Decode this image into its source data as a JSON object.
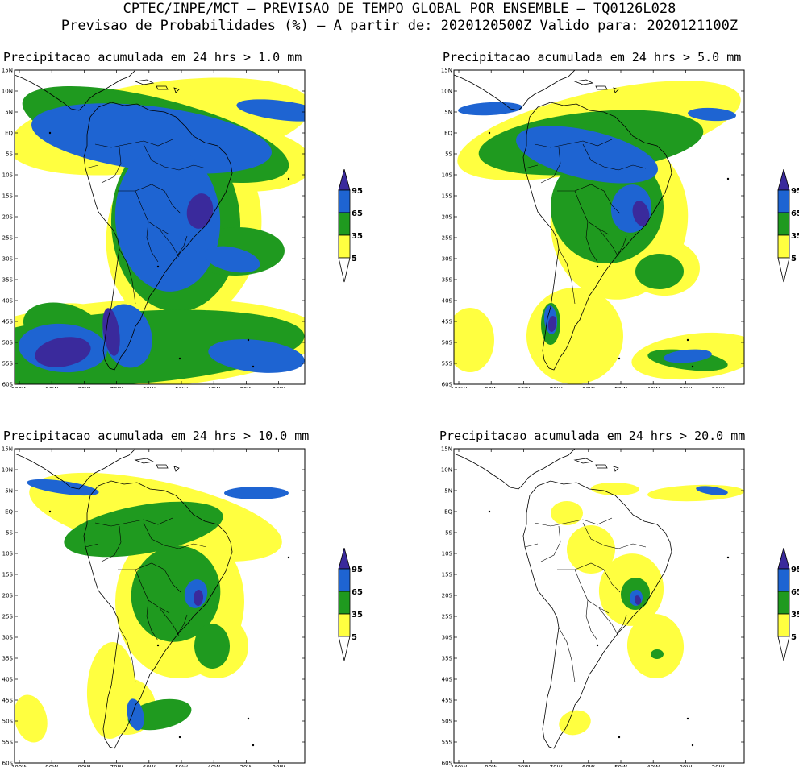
{
  "header": {
    "line1": "CPTEC/INPE/MCT — PREVISAO DE TEMPO GLOBAL POR ENSEMBLE — TQ0126L028",
    "line2": "Previsao de Probabilidades (%) —  A partir de: 2020120500Z  Valido para: 2020121100Z"
  },
  "axes": {
    "lat_labels": [
      "15N",
      "10N",
      "5N",
      "EQ",
      "5S",
      "10S",
      "15S",
      "20S",
      "25S",
      "30S",
      "35S",
      "40S",
      "45S",
      "50S",
      "55S",
      "60S"
    ],
    "lon_labels": [
      "100W",
      "90W",
      "80W",
      "70W",
      "60W",
      "50W",
      "40W",
      "30W",
      "20W"
    ]
  },
  "colors": {
    "c5": "#ffff40",
    "c35": "#1f9a1f",
    "c65": "#1e64d2",
    "c95": "#3a2a9c",
    "coast": "#000000"
  },
  "legend": {
    "levels": [
      "95",
      "65",
      "35",
      "5"
    ]
  },
  "panels": [
    {
      "id": "p1",
      "title": "Precipitacao acumulada em 24 hrs > 1.0 mm"
    },
    {
      "id": "p2",
      "title": "Precipitacao acumulada em 24 hrs > 5.0 mm"
    },
    {
      "id": "p3",
      "title": "Precipitacao acumulada em 24 hrs > 10.0 mm"
    },
    {
      "id": "p4",
      "title": "Precipitacao acumulada em 24 hrs > 20.0 mm"
    }
  ]
}
